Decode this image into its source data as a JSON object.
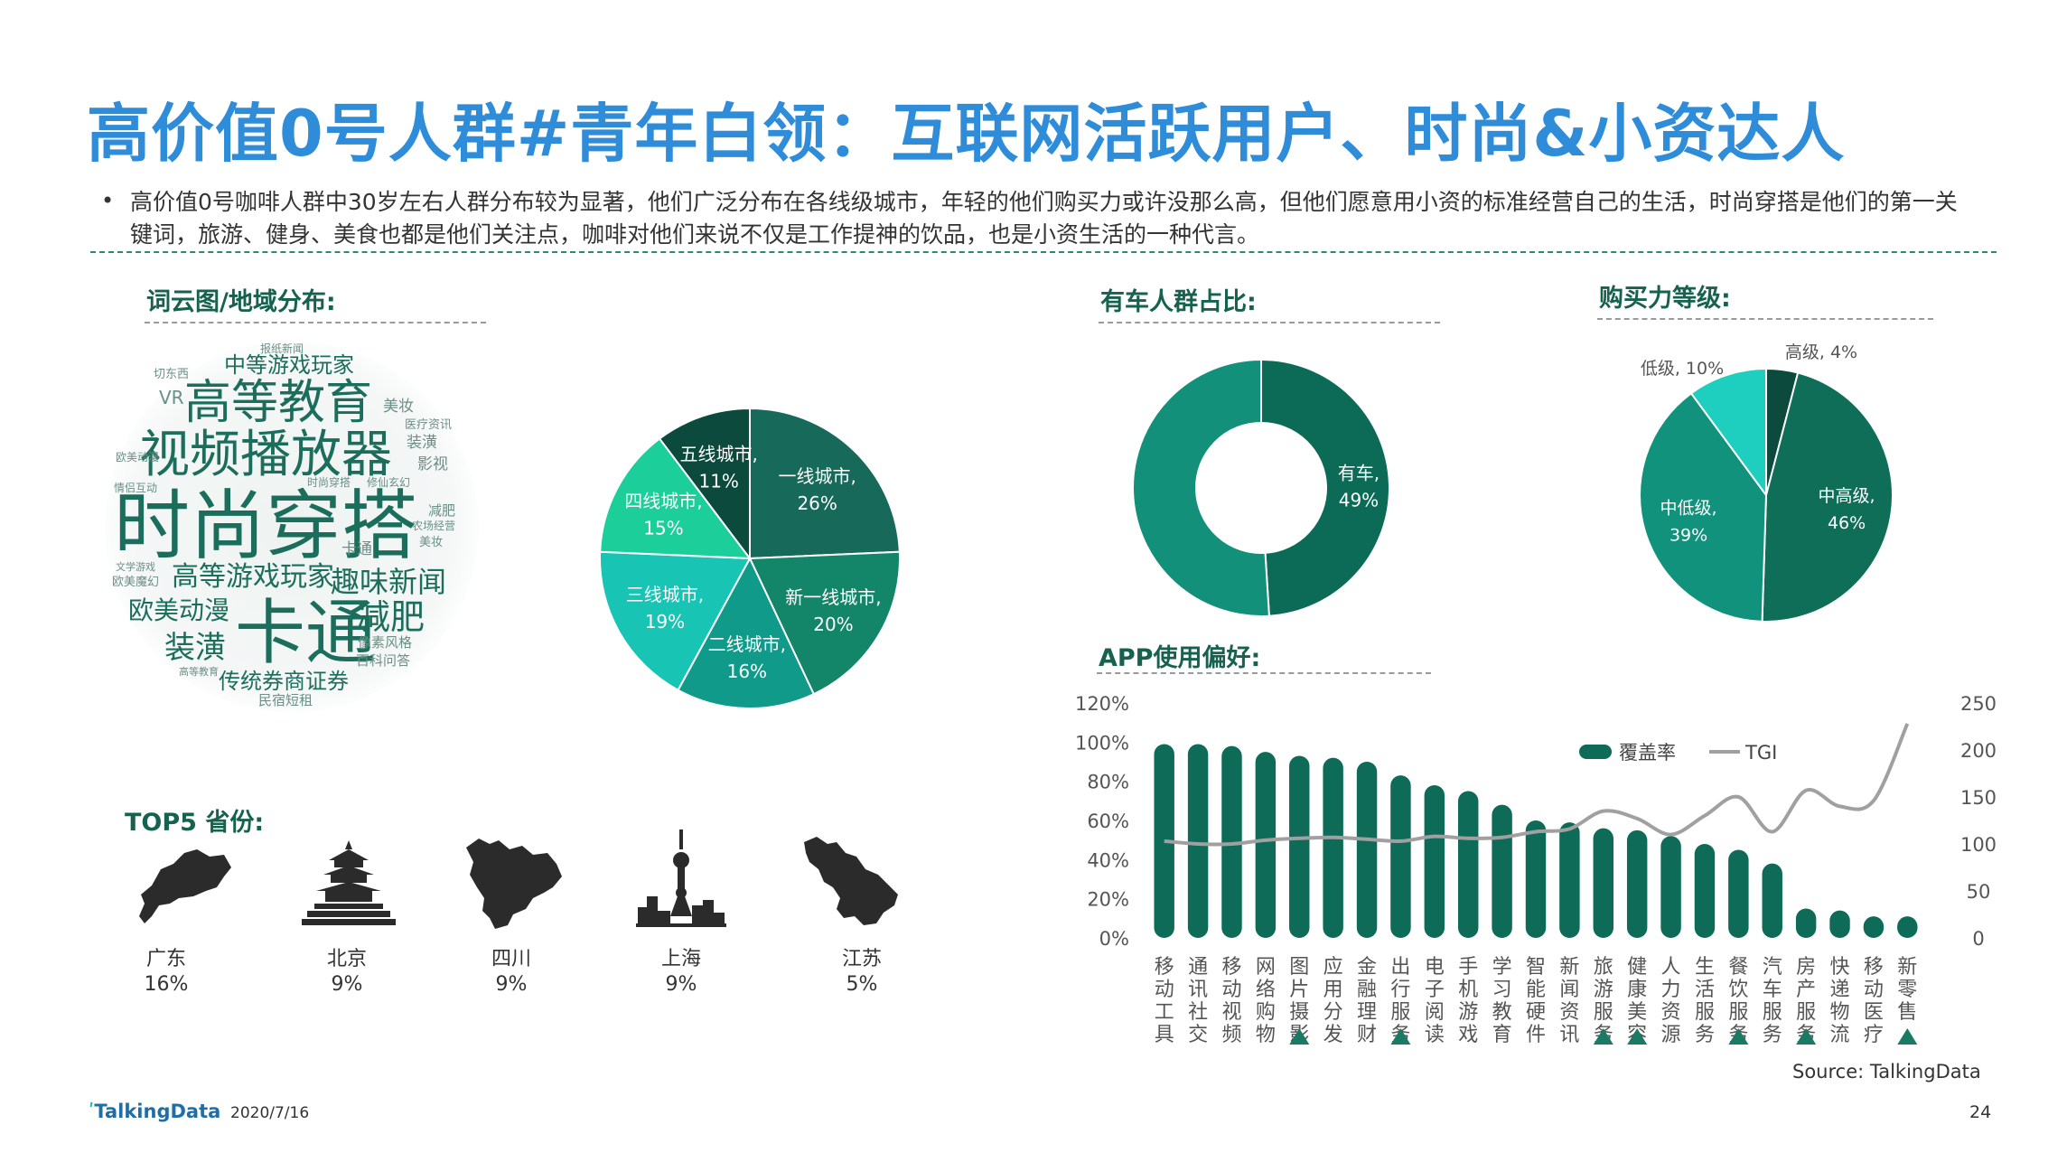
{
  "title": "高价值0号人群#青年白领：互联网活跃用户、时尚&小资达人",
  "bullet": "高价值0号咖啡人群中30岁左右人群分布较为显著，他们广泛分布在各线级城市，年轻的他们购买力或许没那么高，但他们愿意用小资的标准经营自己的生活，时尚穿搭是他们的第一关键词，旅游、健身、美食也都是他们关注点，咖啡对他们来说不仅是工作提神的饮品，也是小资生活的一种代言。",
  "sections": {
    "wordcloud": "词云图/地域分布:",
    "car": "有车人群占比:",
    "purchase": "购买力等级:",
    "app": "APP使用偏好:",
    "top5": "TOP5 省份:"
  },
  "wordcloud_words": {
    "big": [
      "时尚穿搭",
      "视频播放器",
      "高等教育",
      "卡通",
      "高等游戏玩家",
      "趣味新闻",
      "欧美动漫",
      "减肥",
      "装潢",
      "传统券商证券",
      "中等游戏玩家"
    ],
    "small": [
      "切东西",
      "VR",
      "美妆",
      "装潢",
      "影视",
      "医疗资讯",
      "情侣互动",
      "时尚穿搭",
      "修仙玄幻",
      "减肥",
      "农场经营",
      "美妆",
      "卡通",
      "文学游戏",
      "欧美魔幻",
      "像素风格",
      "百科问答",
      "民宿短租",
      "高等教育",
      "欧美动漫",
      "报纸新闻"
    ]
  },
  "provinces": [
    {
      "name": "广东",
      "value": "16%",
      "icon": "guangdong-map-icon"
    },
    {
      "name": "北京",
      "value": "9%",
      "icon": "temple-of-heaven-icon"
    },
    {
      "name": "四川",
      "value": "9%",
      "icon": "sichuan-map-icon"
    },
    {
      "name": "上海",
      "value": "9%",
      "icon": "shanghai-skyline-icon"
    },
    {
      "name": "江苏",
      "value": "5%",
      "icon": "jiangsu-map-icon"
    }
  ],
  "colors": {
    "title": "#2e8cd8",
    "dark_green": "#0d5c4c",
    "green": "#1a7a64",
    "teal": "#0f8a80",
    "bright_teal": "#1ec8b8",
    "tgi_line": "#a0a0a0"
  },
  "source": "Source: TalkingData",
  "footer": {
    "logo": "TalkingData",
    "date": "2020/7/16",
    "page": "24"
  },
  "chart_data": [
    {
      "type": "pie",
      "slices": [
        {
          "label": "一线城市,",
          "pct": "26%",
          "value": 26,
          "color": "#17695a"
        },
        {
          "label": "新一线城市,",
          "pct": "20%",
          "value": 20,
          "color": "#13866a"
        },
        {
          "label": "二线城市,",
          "pct": "16%",
          "value": 16,
          "color": "#0f9a8a"
        },
        {
          "label": "三线城市,",
          "pct": "19%",
          "value": 19,
          "color": "#18c4b4"
        },
        {
          "label": "四线城市,",
          "pct": "15%",
          "value": 15,
          "color": "#1ccf9a"
        },
        {
          "label": "五线城市,",
          "pct": "11%",
          "value": 11,
          "color": "#0b4a3c"
        }
      ]
    },
    {
      "type": "pie",
      "donut": true,
      "slices": [
        {
          "label": "有车,",
          "pct": "49%",
          "value": 49,
          "color": "#0c6b57"
        },
        {
          "label": "",
          "pct": "",
          "value": 51,
          "color": "#13907a"
        }
      ]
    },
    {
      "type": "pie",
      "slices": [
        {
          "label": "高级,",
          "pct": "4%",
          "value": 4,
          "color": "#0b4a3c"
        },
        {
          "label": "中高级,",
          "pct": "46%",
          "value": 46,
          "color": "#0f6e58"
        },
        {
          "label": "中低级,",
          "pct": "39%",
          "value": 39,
          "color": "#11927c"
        },
        {
          "label": "低级,",
          "pct": "10%",
          "value": 10,
          "color": "#1ecfc0"
        }
      ]
    },
    {
      "type": "bar",
      "legend": {
        "bar": "覆盖率",
        "line": "TGI"
      },
      "y_left": {
        "min": 0,
        "max": 120,
        "ticks": [
          "0%",
          "20%",
          "40%",
          "60%",
          "80%",
          "100%",
          "120%"
        ]
      },
      "y_right": {
        "min": 0,
        "max": 250,
        "ticks": [
          "0",
          "50",
          "100",
          "150",
          "200",
          "250"
        ]
      },
      "categories": [
        "移动工具",
        "通讯社交",
        "移动视频",
        "网络购物",
        "图片摄影",
        "应用分发",
        "金融理财",
        "出行服务",
        "电子阅读",
        "手机游戏",
        "学习教育",
        "智能硬件",
        "新闻资讯",
        "旅游服务",
        "健康美容",
        "人力资源",
        "生活服务",
        "餐饮服务",
        "汽车服务",
        "房产服务",
        "快递物流",
        "移动医疗",
        "新零售"
      ],
      "coverage": [
        99,
        99,
        98,
        95,
        93,
        92,
        90,
        83,
        78,
        75,
        68,
        60,
        59,
        56,
        55,
        52,
        48,
        45,
        38,
        15,
        14,
        11,
        11
      ],
      "tgi": [
        103,
        100,
        100,
        104,
        106,
        107,
        105,
        103,
        108,
        106,
        107,
        113,
        116,
        135,
        127,
        110,
        130,
        150,
        113,
        157,
        140,
        146,
        228
      ],
      "markers": [
        4,
        7,
        13,
        14,
        17,
        19,
        22
      ]
    }
  ]
}
